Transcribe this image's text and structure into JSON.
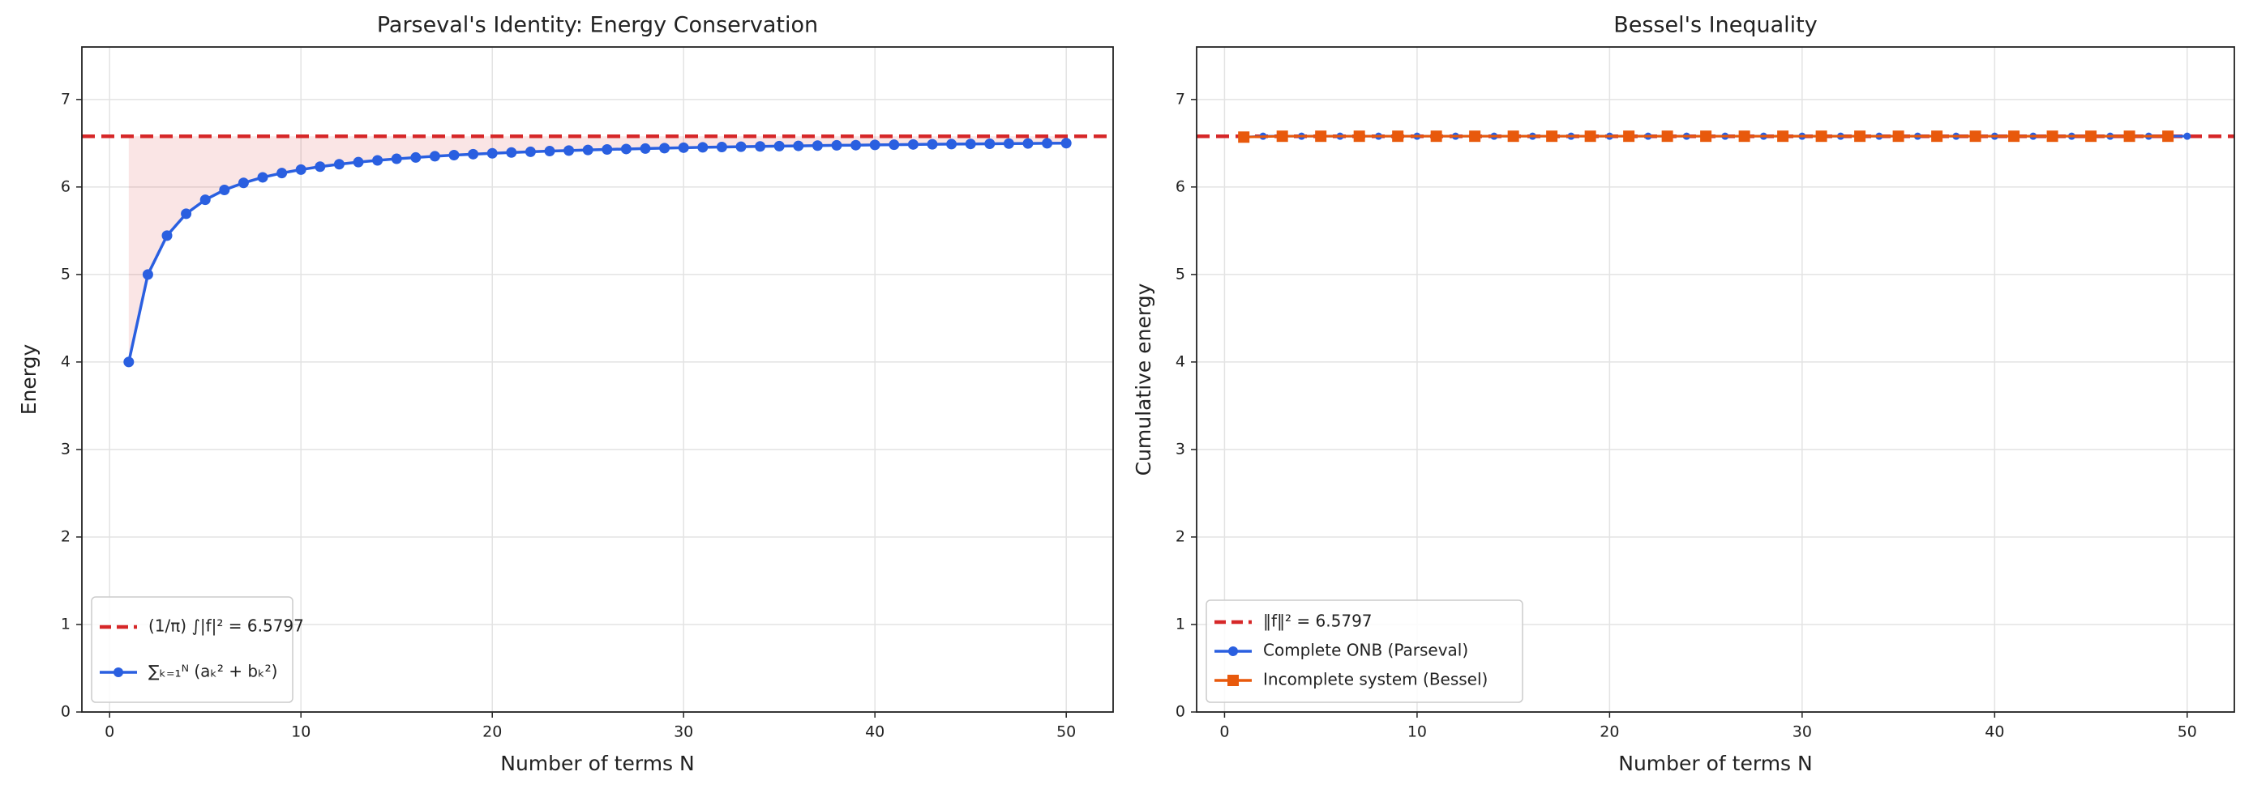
{
  "chart_data": [
    {
      "type": "line",
      "title": "Parseval's Identity: Energy Conservation",
      "xlabel": "Number of terms N",
      "ylabel": "Energy",
      "xlim": [
        -1.45,
        52.45
      ],
      "xticks": [
        0,
        10,
        20,
        30,
        40,
        50
      ],
      "ylim": [
        0,
        7.6
      ],
      "yticks": [
        0,
        1,
        2,
        3,
        4,
        5,
        6,
        7
      ],
      "grid": true,
      "legend": "lower left",
      "fill_to_reference": true,
      "reference_line": {
        "name": "(1/π) ∫|f|² = 6.5797",
        "value": 6.5797,
        "color": "#d62728"
      },
      "series": [
        {
          "name": "∑ₖ₌₁ᴺ (aₖ² + bₖ²)",
          "color": "#2a5fe0",
          "marker": "circle",
          "x": [
            1,
            2,
            3,
            4,
            5,
            6,
            7,
            8,
            9,
            10,
            11,
            12,
            13,
            14,
            15,
            16,
            17,
            18,
            19,
            20,
            21,
            22,
            23,
            24,
            25,
            26,
            27,
            28,
            29,
            30,
            31,
            32,
            33,
            34,
            35,
            36,
            37,
            38,
            39,
            40,
            41,
            42,
            43,
            44,
            45,
            46,
            47,
            48,
            49,
            50
          ],
          "values": [
            4,
            5,
            5.444,
            5.694,
            5.854,
            5.966,
            6.047,
            6.11,
            6.159,
            6.199,
            6.232,
            6.26,
            6.284,
            6.304,
            6.322,
            6.337,
            6.351,
            6.364,
            6.375,
            6.385,
            6.394,
            6.402,
            6.41,
            6.416,
            6.423,
            6.429,
            6.434,
            6.439,
            6.444,
            6.449,
            6.453,
            6.457,
            6.46,
            6.464,
            6.467,
            6.47,
            6.473,
            6.476,
            6.478,
            6.481,
            6.483,
            6.486,
            6.488,
            6.49,
            6.492,
            6.494,
            6.496,
            6.497,
            6.499,
            6.501
          ]
        }
      ]
    },
    {
      "type": "line",
      "title": "Bessel's Inequality",
      "xlabel": "Number of terms N",
      "ylabel": "Cumulative energy",
      "xlim": [
        -1.45,
        52.45
      ],
      "xticks": [
        0,
        10,
        20,
        30,
        40,
        50
      ],
      "ylim": [
        0,
        7.6
      ],
      "yticks": [
        0,
        1,
        2,
        3,
        4,
        5,
        6,
        7
      ],
      "grid": true,
      "legend": "lower left",
      "fill_to_reference": false,
      "reference_line": {
        "name": "‖f‖² = 6.5797",
        "value": 6.5797,
        "color": "#d62728"
      },
      "series": [
        {
          "name": "Complete ONB (Parseval)",
          "color": "#2a5fe0",
          "marker": "circle",
          "x": [
            1,
            2,
            3,
            4,
            5,
            6,
            7,
            8,
            9,
            10,
            11,
            12,
            13,
            14,
            15,
            16,
            17,
            18,
            19,
            20,
            21,
            22,
            23,
            24,
            25,
            26,
            27,
            28,
            29,
            30,
            31,
            32,
            33,
            34,
            35,
            36,
            37,
            38,
            39,
            40,
            41,
            42,
            43,
            44,
            45,
            46,
            47,
            48,
            49,
            50
          ],
          "values": [
            6.57,
            6.58,
            6.58,
            6.58,
            6.58,
            6.58,
            6.58,
            6.58,
            6.58,
            6.58,
            6.58,
            6.58,
            6.58,
            6.58,
            6.58,
            6.58,
            6.58,
            6.58,
            6.58,
            6.58,
            6.58,
            6.58,
            6.58,
            6.58,
            6.58,
            6.58,
            6.58,
            6.58,
            6.58,
            6.58,
            6.58,
            6.58,
            6.58,
            6.58,
            6.58,
            6.58,
            6.58,
            6.58,
            6.58,
            6.58,
            6.58,
            6.58,
            6.58,
            6.58,
            6.58,
            6.58,
            6.58,
            6.58,
            6.58,
            6.58
          ]
        },
        {
          "name": "Incomplete system (Bessel)",
          "color": "#e8590c",
          "marker": "square",
          "x": [
            1,
            3,
            5,
            7,
            9,
            11,
            13,
            15,
            17,
            19,
            21,
            23,
            25,
            27,
            29,
            31,
            33,
            35,
            37,
            39,
            41,
            43,
            45,
            47,
            49
          ],
          "values": [
            6.57,
            6.58,
            6.58,
            6.58,
            6.58,
            6.58,
            6.58,
            6.58,
            6.58,
            6.58,
            6.58,
            6.58,
            6.58,
            6.58,
            6.58,
            6.58,
            6.58,
            6.58,
            6.58,
            6.58,
            6.58,
            6.58,
            6.58,
            6.58,
            6.58
          ]
        }
      ]
    }
  ]
}
